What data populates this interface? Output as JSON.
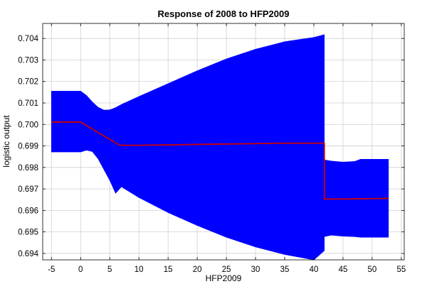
{
  "chart_data": {
    "type": "line",
    "title": "Response of 2008 to HFP2009",
    "xlabel": "HFP2009",
    "ylabel": "logistic output",
    "xlim": [
      -6.5,
      55.5
    ],
    "ylim": [
      0.6937,
      0.7047
    ],
    "xticks": [
      -5,
      0,
      5,
      10,
      15,
      20,
      25,
      30,
      35,
      40,
      45,
      50,
      55
    ],
    "yticks": [
      0.694,
      0.695,
      0.696,
      0.697,
      0.698,
      0.699,
      0.7,
      0.701,
      0.702,
      0.703,
      0.704
    ],
    "grid": true,
    "series": [
      {
        "role": "band",
        "color": "#0000ff",
        "upper": [
          [
            -5,
            0.70155
          ],
          [
            0,
            0.70155
          ],
          [
            1,
            0.70135
          ],
          [
            2,
            0.70105
          ],
          [
            3,
            0.7008
          ],
          [
            4,
            0.70067
          ],
          [
            5,
            0.70068
          ],
          [
            6,
            0.70078
          ],
          [
            7,
            0.70093
          ],
          [
            10,
            0.7013
          ],
          [
            15,
            0.7019
          ],
          [
            20,
            0.7025
          ],
          [
            25,
            0.70305
          ],
          [
            30,
            0.7035
          ],
          [
            35,
            0.70385
          ],
          [
            40,
            0.70405
          ],
          [
            41.8,
            0.70418
          ],
          [
            41.8,
            0.69835
          ],
          [
            43,
            0.6983
          ],
          [
            45,
            0.69825
          ],
          [
            47,
            0.69828
          ],
          [
            48,
            0.69838
          ],
          [
            50,
            0.69838
          ],
          [
            52.8,
            0.69838
          ]
        ],
        "lower": [
          [
            -5,
            0.69872
          ],
          [
            0,
            0.69872
          ],
          [
            1,
            0.6988
          ],
          [
            2,
            0.69874
          ],
          [
            3,
            0.6984
          ],
          [
            4,
            0.6979
          ],
          [
            5,
            0.6974
          ],
          [
            6,
            0.6968
          ],
          [
            7,
            0.6971
          ],
          [
            10,
            0.6966
          ],
          [
            15,
            0.6959
          ],
          [
            20,
            0.6953
          ],
          [
            25,
            0.69475
          ],
          [
            30,
            0.6943
          ],
          [
            35,
            0.69395
          ],
          [
            40,
            0.6937
          ],
          [
            41.8,
            0.69413
          ],
          [
            41.8,
            0.69478
          ],
          [
            43,
            0.69485
          ],
          [
            45,
            0.6948
          ],
          [
            47,
            0.69478
          ],
          [
            48,
            0.69475
          ],
          [
            50,
            0.69475
          ],
          [
            52.8,
            0.69475
          ]
        ]
      },
      {
        "role": "line",
        "color": "#cc0000",
        "points": [
          [
            -5,
            0.70011
          ],
          [
            0,
            0.70011
          ],
          [
            6.7,
            0.69903
          ],
          [
            10,
            0.69903
          ],
          [
            15,
            0.69905
          ],
          [
            20,
            0.69907
          ],
          [
            25,
            0.69909
          ],
          [
            30,
            0.69911
          ],
          [
            35,
            0.69913
          ],
          [
            41.8,
            0.69913
          ],
          [
            41.8,
            0.69653
          ],
          [
            45,
            0.69653
          ],
          [
            50,
            0.69655
          ],
          [
            52.8,
            0.69656
          ]
        ]
      }
    ]
  }
}
